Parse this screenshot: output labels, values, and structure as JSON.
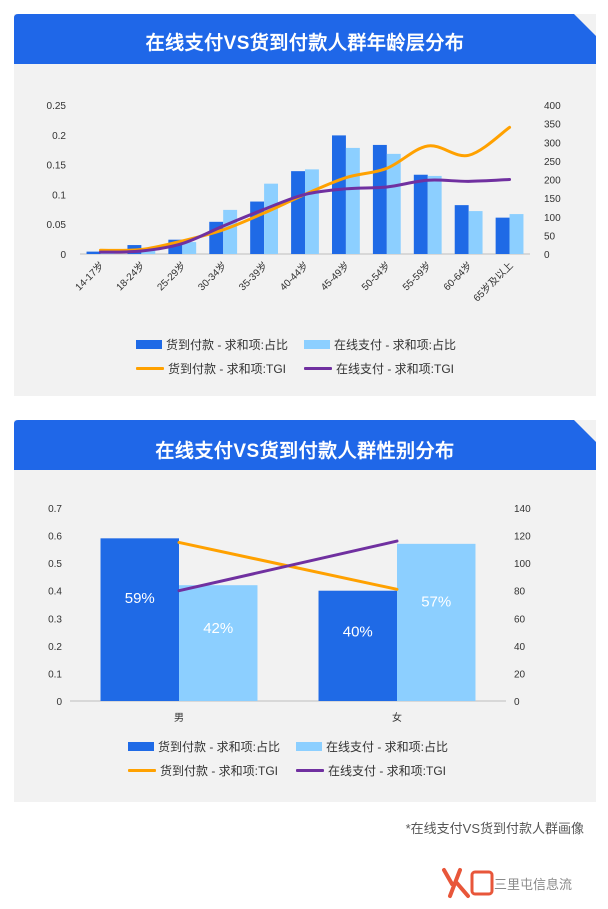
{
  "charts": [
    {
      "title": "在线支付VS货到付款人群年龄层分布",
      "legend": [
        "货到付款 - 求和项:占比",
        "在线支付 - 求和项:占比",
        "货到付款 - 求和项:TGI",
        "在线支付 - 求和项:TGI"
      ]
    },
    {
      "title": "在线支付VS货到付款人群性别分布",
      "legend": [
        "货到付款 - 求和项:占比",
        "在线支付 - 求和项:占比",
        "货到付款 - 求和项:TGI",
        "在线支付 - 求和项:TGI"
      ]
    }
  ],
  "caption": "*在线支付VS货到付款人群画像",
  "watermark": "三里屯信息流",
  "colors": {
    "banner": "#1f67e8",
    "cod_bar": "#1f6ae6",
    "online_bar": "#8ccfff",
    "cod_line": "#ffa100",
    "online_line": "#7030a0"
  },
  "chart_data": [
    {
      "type": "bar",
      "categories": [
        "14-17岁",
        "18-24岁",
        "25-29岁",
        "30-34岁",
        "35-39岁",
        "40-44岁",
        "45-49岁",
        "50-54岁",
        "55-59岁",
        "60-64岁",
        "65岁及以上"
      ],
      "ylim": [
        0,
        0.25
      ],
      "y_ticks": [
        "0",
        "0.05",
        "0.1",
        "0.15",
        "0.2",
        "0.25"
      ],
      "y2lim": [
        0,
        400
      ],
      "y2_ticks": [
        "0",
        "50",
        "100",
        "150",
        "200",
        "250",
        "300",
        "350",
        "400"
      ],
      "series": [
        {
          "name": "货到付款 - 求和项:占比",
          "kind": "bar",
          "axis": "left",
          "values": [
            0.004,
            0.015,
            0.024,
            0.054,
            0.088,
            0.139,
            0.199,
            0.183,
            0.133,
            0.082,
            0.061
          ]
        },
        {
          "name": "在线支付 - 求和项:占比",
          "kind": "bar",
          "axis": "left",
          "values": [
            0.003,
            0.01,
            0.02,
            0.074,
            0.118,
            0.142,
            0.178,
            0.168,
            0.131,
            0.072,
            0.067
          ]
        },
        {
          "name": "货到付款 - 求和项:TGI",
          "kind": "line",
          "axis": "right",
          "values": [
            10,
            12,
            35,
            65,
            110,
            160,
            205,
            230,
            290,
            265,
            340
          ]
        },
        {
          "name": "在线支付 - 求和项:TGI",
          "kind": "line",
          "axis": "right",
          "values": [
            5,
            8,
            28,
            75,
            120,
            160,
            175,
            180,
            198,
            195,
            200
          ]
        }
      ]
    },
    {
      "type": "bar",
      "categories": [
        "男",
        "女"
      ],
      "ylim": [
        0,
        0.7
      ],
      "y_ticks": [
        "0",
        "0.1",
        "0.2",
        "0.3",
        "0.4",
        "0.5",
        "0.6",
        "0.7"
      ],
      "y2lim": [
        0,
        140
      ],
      "y2_ticks": [
        "0",
        "20",
        "40",
        "60",
        "80",
        "100",
        "120",
        "140"
      ],
      "series": [
        {
          "name": "货到付款 - 求和项:占比",
          "kind": "bar",
          "axis": "left",
          "values": [
            0.59,
            0.4
          ],
          "labels": [
            "59%",
            "40%"
          ]
        },
        {
          "name": "在线支付 - 求和项:占比",
          "kind": "bar",
          "axis": "left",
          "values": [
            0.42,
            0.57
          ],
          "labels": [
            "42%",
            "57%"
          ]
        },
        {
          "name": "货到付款 - 求和项:TGI",
          "kind": "line",
          "axis": "right",
          "values": [
            115,
            81
          ]
        },
        {
          "name": "在线支付 - 求和项:TGI",
          "kind": "line",
          "axis": "right",
          "values": [
            80,
            116
          ]
        }
      ]
    }
  ]
}
